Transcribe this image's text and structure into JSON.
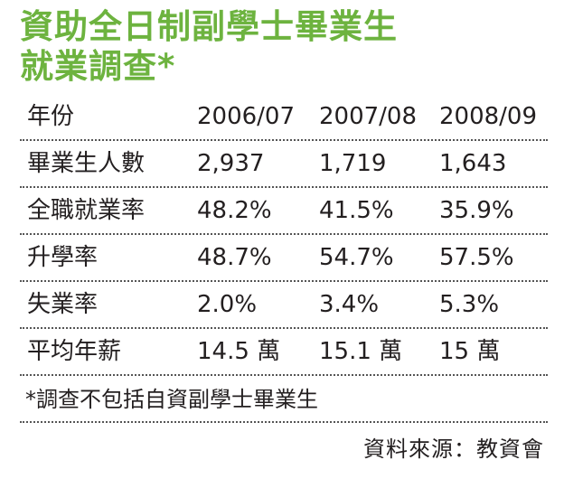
{
  "title": {
    "line1": "資助全日制副學士畢業生",
    "line2": "就業調查*"
  },
  "chart_data": {
    "type": "table",
    "columns": [
      "年份",
      "2006/07",
      "2007/08",
      "2008/09"
    ],
    "rows": [
      [
        "畢業生人數",
        "2,937",
        "1,719",
        "1,643"
      ],
      [
        "全職就業率",
        "48.2%",
        "41.5%",
        "35.9%"
      ],
      [
        "升學率",
        "48.7%",
        "54.7%",
        "57.5%"
      ],
      [
        "失業率",
        "2.0%",
        "3.4%",
        "5.3%"
      ],
      [
        "平均年薪",
        "14.5 萬",
        "15.1 萬",
        "15 萬"
      ]
    ]
  },
  "footnote": "*調查不包括自資副學士畢業生",
  "source": "資料來源：教資會",
  "colors": {
    "title": "#6db33f",
    "text": "#231f20",
    "divider": "#555555"
  }
}
